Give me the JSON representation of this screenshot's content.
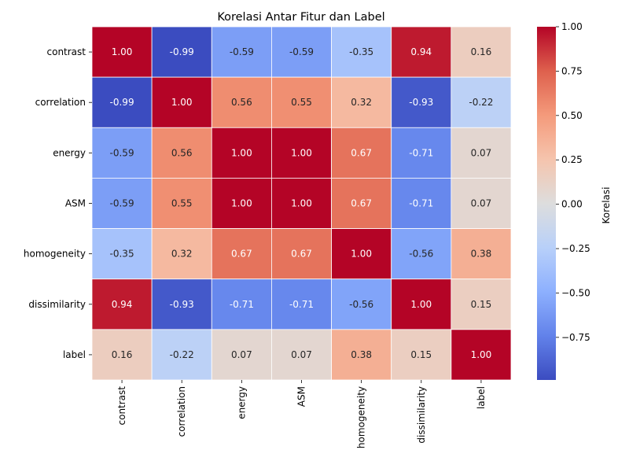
{
  "chart_data": {
    "type": "heatmap",
    "title": "Korelasi Antar Fitur dan Label",
    "rows": [
      "contrast",
      "correlation",
      "energy",
      "ASM",
      "homogeneity",
      "dissimilarity",
      "label"
    ],
    "columns": [
      "contrast",
      "correlation",
      "energy",
      "ASM",
      "homogeneity",
      "dissimilarity",
      "label"
    ],
    "values": [
      [
        1.0,
        -0.99,
        -0.59,
        -0.59,
        -0.35,
        0.94,
        0.16
      ],
      [
        -0.99,
        1.0,
        0.56,
        0.55,
        0.32,
        -0.93,
        -0.22
      ],
      [
        -0.59,
        0.56,
        1.0,
        1.0,
        0.67,
        -0.71,
        0.07
      ],
      [
        -0.59,
        0.55,
        1.0,
        1.0,
        0.67,
        -0.71,
        0.07
      ],
      [
        -0.35,
        0.32,
        0.67,
        0.67,
        1.0,
        -0.56,
        0.38
      ],
      [
        0.94,
        -0.93,
        -0.71,
        -0.71,
        -0.56,
        1.0,
        0.15
      ],
      [
        0.16,
        -0.22,
        0.07,
        0.07,
        0.38,
        0.15,
        1.0
      ]
    ],
    "annotation_labels": [
      [
        "1.00",
        "-0.99",
        "-0.59",
        "-0.59",
        "-0.35",
        "0.94",
        "0.16"
      ],
      [
        "-0.99",
        "1.00",
        "0.56",
        "0.55",
        "0.32",
        "-0.93",
        "-0.22"
      ],
      [
        "-0.59",
        "0.56",
        "1.00",
        "1.00",
        "0.67",
        "-0.71",
        "0.07"
      ],
      [
        "-0.59",
        "0.55",
        "1.00",
        "1.00",
        "0.67",
        "-0.71",
        "0.07"
      ],
      [
        "-0.35",
        "0.32",
        "0.67",
        "0.67",
        "1.00",
        "-0.56",
        "0.38"
      ],
      [
        "0.94",
        "-0.93",
        "-0.71",
        "-0.71",
        "-0.56",
        "1.00",
        "0.15"
      ],
      [
        "0.16",
        "-0.22",
        "0.07",
        "0.07",
        "0.38",
        "0.15",
        "1.00"
      ]
    ],
    "colormap": "coolwarm",
    "vmin": -0.99,
    "vmax": 1.0,
    "colorbar": {
      "label": "Korelasi",
      "ticks": [
        1.0,
        0.75,
        0.5,
        0.25,
        0.0,
        -0.25,
        -0.5,
        -0.75
      ],
      "tick_labels": [
        "1.00",
        "0.75",
        "0.50",
        "0.25",
        "0.00",
        "−0.25",
        "−0.50",
        "−0.75"
      ],
      "placement": "right"
    },
    "x_tick_rotation": "vertical",
    "grid": false
  }
}
